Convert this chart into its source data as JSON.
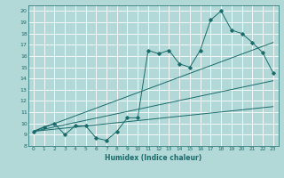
{
  "title": "",
  "xlabel": "Humidex (Indice chaleur)",
  "bg_color": "#b2d8d8",
  "grid_color": "#ffffff",
  "line_color": "#1a6b6b",
  "xlim": [
    -0.5,
    23.5
  ],
  "ylim": [
    8,
    20.5
  ],
  "xticks": [
    0,
    1,
    2,
    3,
    4,
    5,
    6,
    7,
    8,
    9,
    10,
    11,
    12,
    13,
    14,
    15,
    16,
    17,
    18,
    19,
    20,
    21,
    22,
    23
  ],
  "yticks": [
    8,
    9,
    10,
    11,
    12,
    13,
    14,
    15,
    16,
    17,
    18,
    19,
    20
  ],
  "scatter_x": [
    0,
    1,
    2,
    3,
    4,
    5,
    6,
    7,
    8,
    9,
    10,
    11,
    12,
    13,
    14,
    15,
    16,
    17,
    18,
    19,
    20,
    21,
    22,
    23
  ],
  "scatter_y": [
    9.3,
    9.7,
    10.0,
    9.0,
    9.8,
    9.8,
    8.7,
    8.5,
    9.3,
    10.5,
    10.5,
    16.5,
    16.2,
    16.5,
    15.3,
    15.0,
    16.5,
    19.2,
    20.0,
    18.3,
    18.0,
    17.2,
    16.3,
    14.5
  ],
  "line1_x": [
    0,
    23
  ],
  "line1_y": [
    9.3,
    17.2
  ],
  "line2_x": [
    0,
    23
  ],
  "line2_y": [
    9.3,
    13.8
  ],
  "line3_x": [
    0,
    23
  ],
  "line3_y": [
    9.3,
    11.5
  ]
}
